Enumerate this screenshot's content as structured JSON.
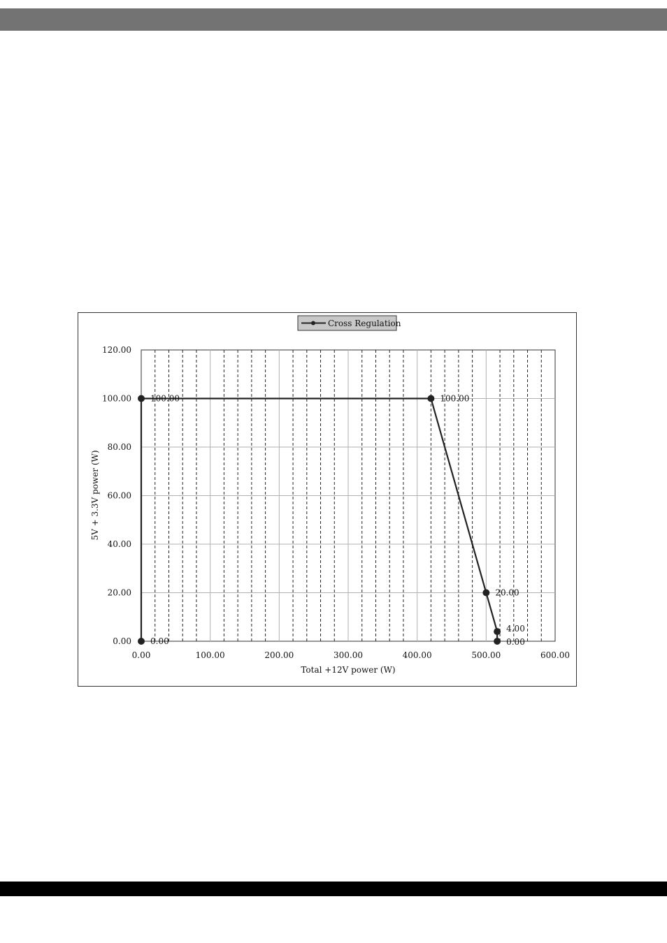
{
  "chart_data": {
    "type": "line",
    "legend": {
      "entries": [
        "Cross Regulation"
      ],
      "placement": "top-center"
    },
    "xlabel": "Total +12V power (W)",
    "ylabel": "5V + 3.3V power (W)",
    "xlim": [
      0,
      600
    ],
    "ylim": [
      0,
      120
    ],
    "x_ticks": [
      0,
      100,
      200,
      300,
      400,
      500,
      600
    ],
    "x_tick_labels": [
      "0.00",
      "100.00",
      "200.00",
      "300.00",
      "400.00",
      "500.00",
      "600.00"
    ],
    "y_ticks": [
      0,
      20,
      40,
      60,
      80,
      100,
      120
    ],
    "y_tick_labels": [
      "0.00",
      "20.00",
      "40.00",
      "60.00",
      "80.00",
      "100.00",
      "120.00"
    ],
    "grid": true,
    "series": [
      {
        "name": "Cross Regulation",
        "color": "#222222",
        "points": [
          {
            "x": 0,
            "y": 0,
            "label": "0.00"
          },
          {
            "x": 0,
            "y": 100,
            "label": "100.00"
          },
          {
            "x": 420,
            "y": 100,
            "label": "100.00"
          },
          {
            "x": 500,
            "y": 20,
            "label": "20.00"
          },
          {
            "x": 516,
            "y": 4,
            "label": "4.00"
          },
          {
            "x": 516,
            "y": 0,
            "label": "0.00"
          }
        ]
      }
    ]
  }
}
